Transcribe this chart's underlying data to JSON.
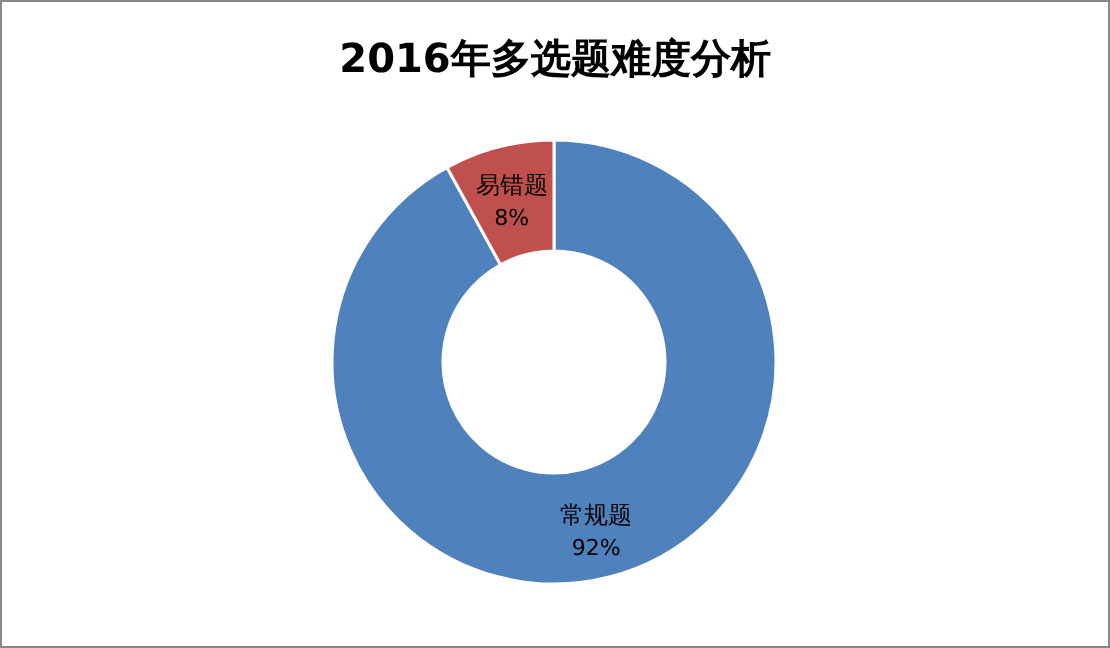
{
  "chart_data": {
    "type": "donut",
    "title": "2016年多选题难度分析",
    "categories": [
      "常规题",
      "易错题"
    ],
    "values": [
      92,
      8
    ],
    "colors": [
      "#4f81bd",
      "#c0504d"
    ],
    "value_labels": [
      "92%",
      "8%"
    ]
  }
}
